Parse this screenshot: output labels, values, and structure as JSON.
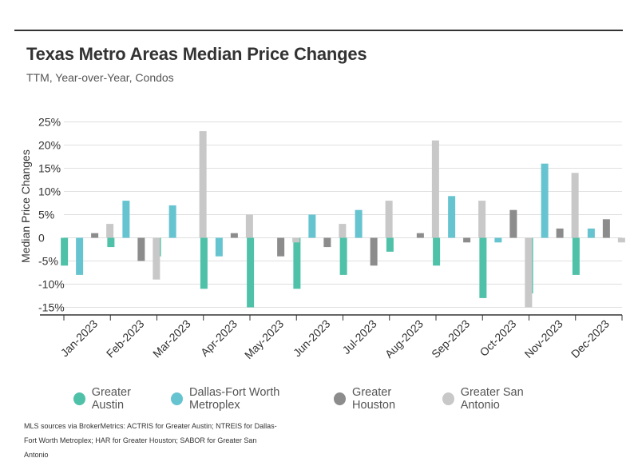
{
  "header": {
    "title": "Texas Metro Areas Median Price Changes",
    "subtitle": "TTM, Year-over-Year, Condos"
  },
  "source_note": "MLS sources via BrokerMetrics: ACTRIS for Greater Austin; NTREIS for Dallas-Fort Worth Metroplex; HAR for Greater Houston; SABOR for Greater San Antonio",
  "colors": {
    "greater_austin": "#4fc1a8",
    "dallas_fort_worth": "#66c4d0",
    "greater_houston": "#8c8c8c",
    "greater_san_antonio": "#c8c8c8",
    "gridline": "#e0e0e0",
    "axis": "#333333"
  },
  "chart_data": {
    "type": "bar",
    "title": "Texas Metro Areas Median Price Changes",
    "subtitle": "TTM, Year-over-Year, Condos",
    "xlabel": "",
    "ylabel": "Median Price Changes",
    "ylim": [
      -17,
      25
    ],
    "yticks": [
      25,
      20,
      15,
      10,
      5,
      0,
      -5,
      -10,
      -15
    ],
    "ytick_labels": [
      "25%",
      "20%",
      "15%",
      "10%",
      "5%",
      "0",
      "-5%",
      "-10%",
      "-15%"
    ],
    "grid": true,
    "legend_position": "bottom-center",
    "categories": [
      "Jan-2023",
      "Feb-2023",
      "Mar-2023",
      "Apr-2023",
      "May-2023",
      "Jun-2023",
      "Jul-2023",
      "Aug-2023",
      "Sep-2023",
      "Oct-2023",
      "Nov-2023",
      "Dec-2023"
    ],
    "series": [
      {
        "name": "Greater Austin",
        "values": [
          -6,
          -2,
          -4,
          -11,
          -15,
          -11,
          -8,
          -3,
          -6,
          -13,
          -12,
          -8
        ]
      },
      {
        "name": "Dallas-Fort Worth Metroplex",
        "values": [
          -8,
          8,
          7,
          -4,
          0,
          5,
          6,
          0,
          9,
          -1,
          16,
          2
        ]
      },
      {
        "name": "Greater Houston",
        "values": [
          1,
          -5,
          0,
          1,
          -4,
          -2,
          -6,
          1,
          -1,
          6,
          2,
          4
        ]
      },
      {
        "name": "Greater San Antonio",
        "values": [
          3,
          -9,
          23,
          5,
          -1,
          3,
          8,
          21,
          8,
          -15,
          14,
          -1
        ]
      }
    ]
  }
}
